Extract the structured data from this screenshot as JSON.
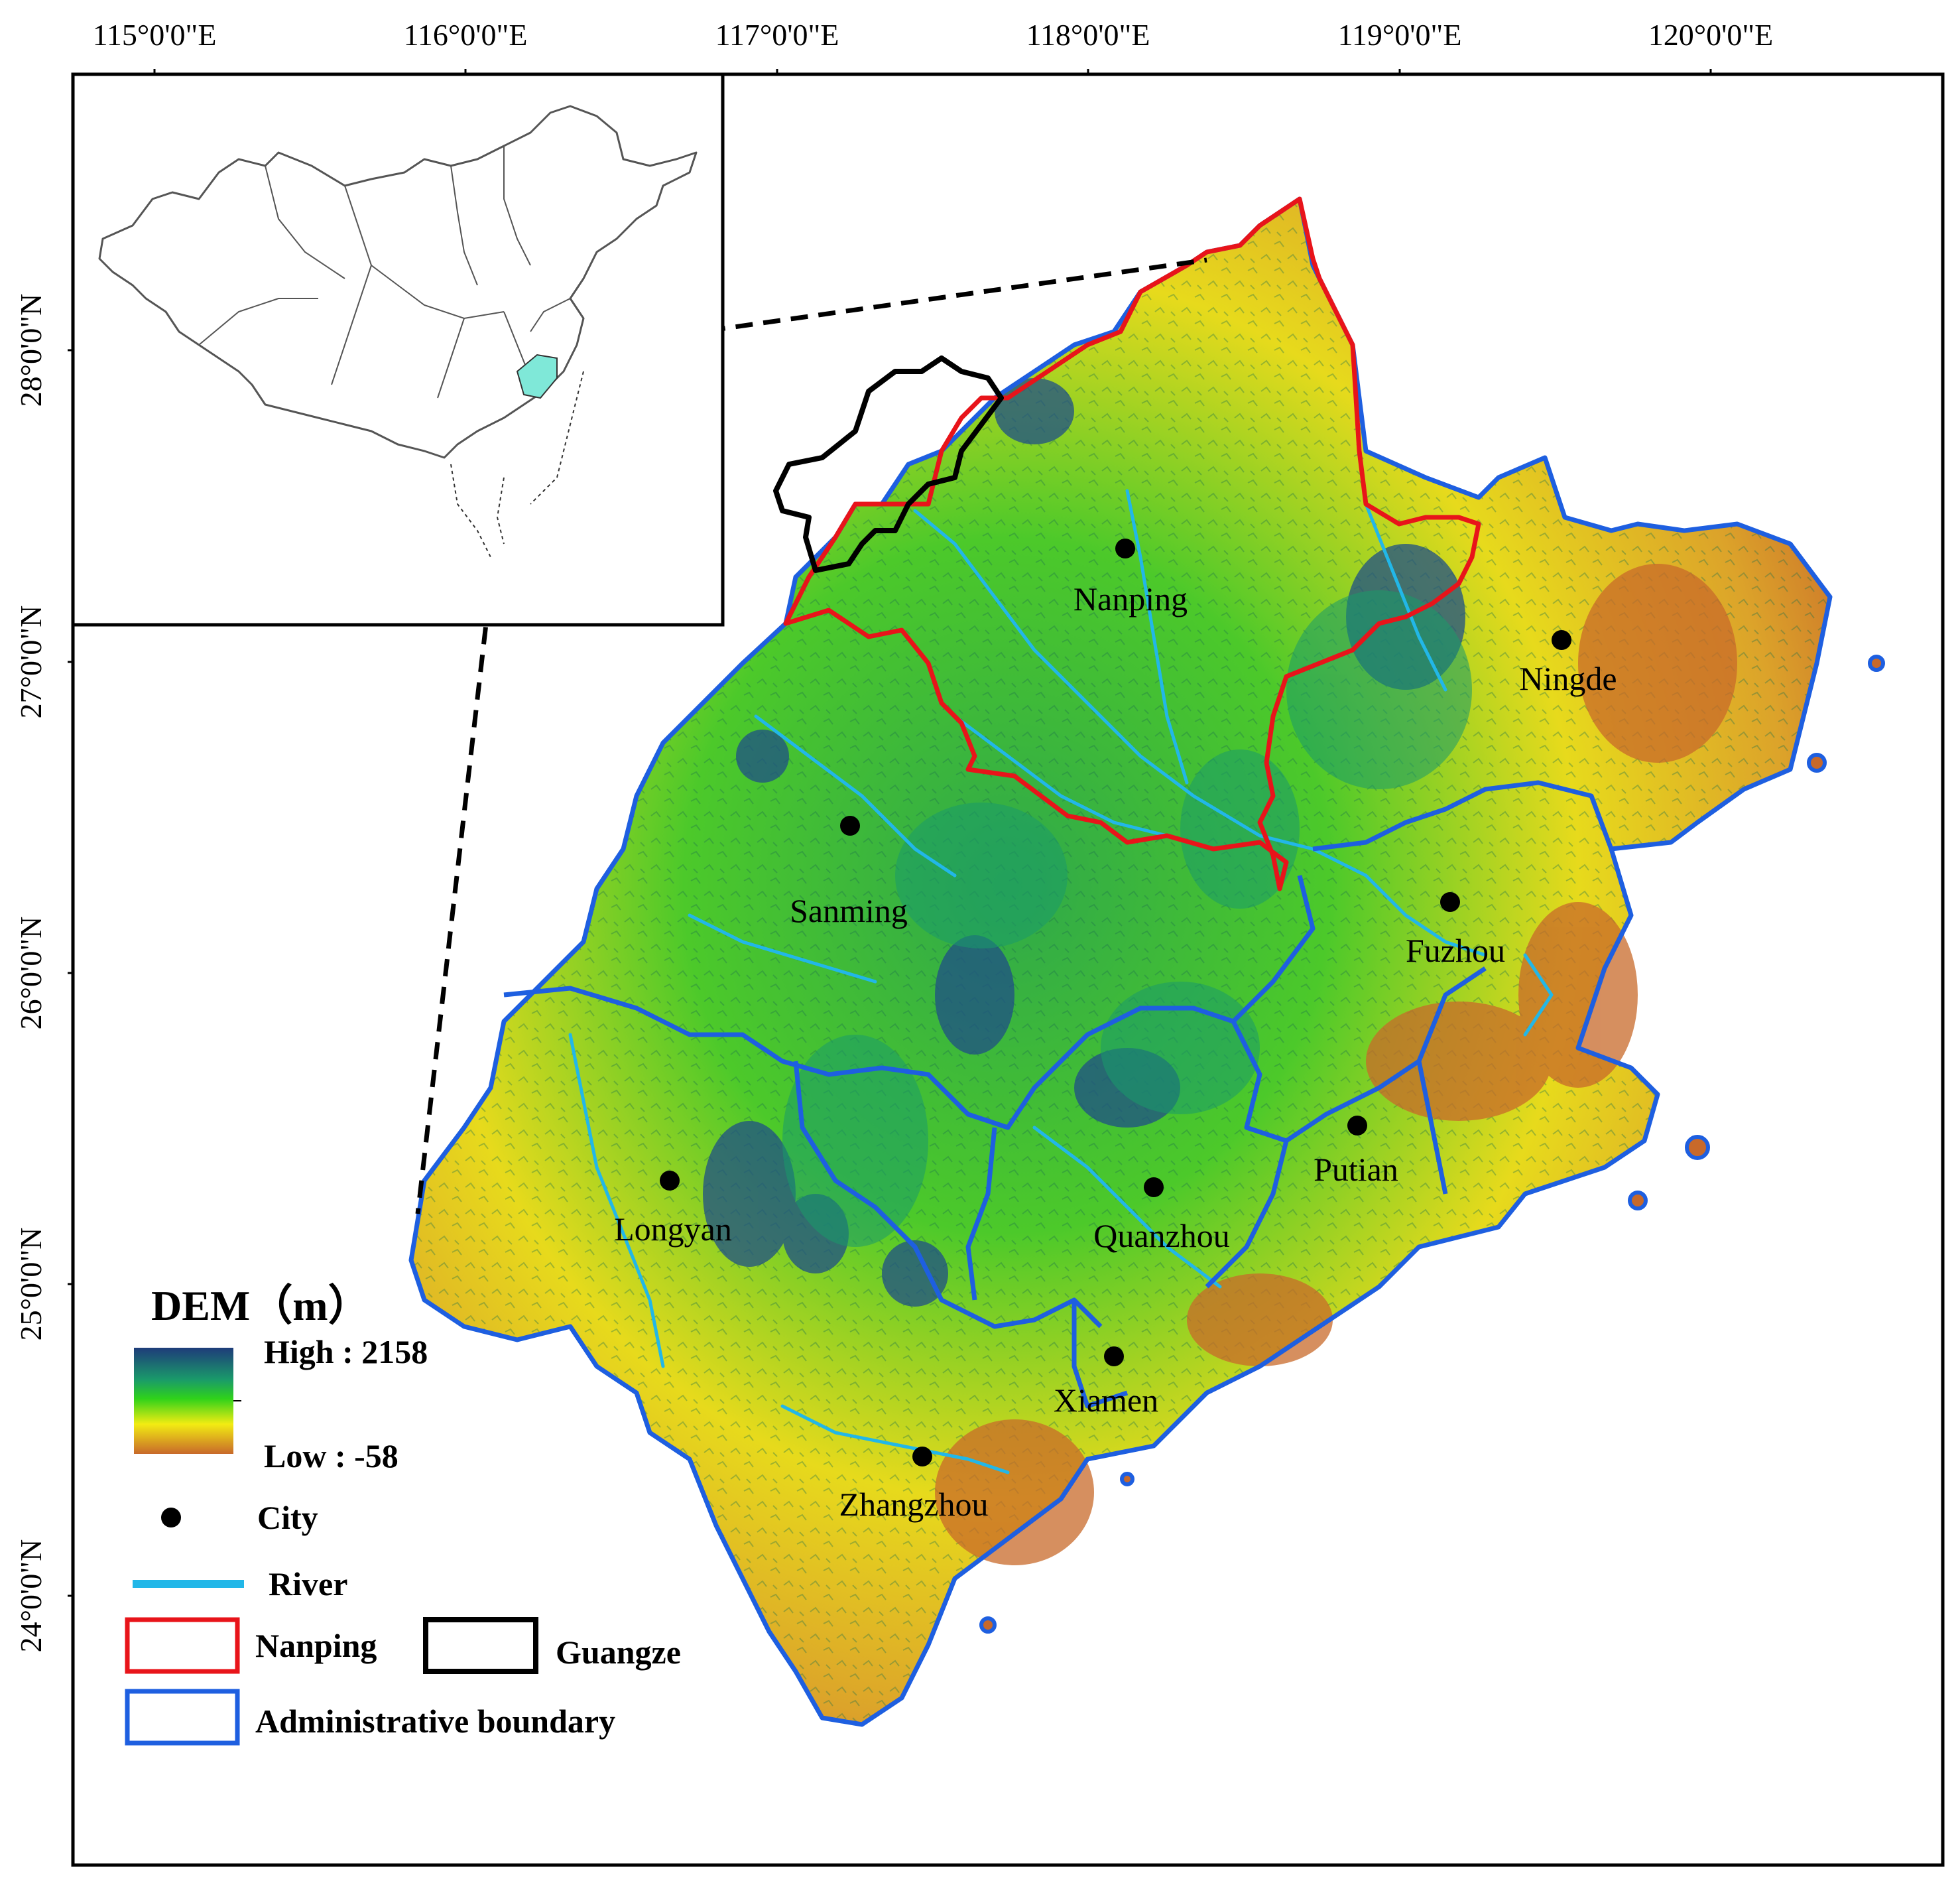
{
  "graticule": {
    "lon_labels": [
      "115°0'0\"E",
      "116°0'0\"E",
      "117°0'0\"E",
      "118°0'0\"E",
      "119°0'0\"E",
      "120°0'0\"E"
    ],
    "lat_labels": [
      "28°0'0\"N",
      "27°0'0\"N",
      "26°0'0\"N",
      "25°0'0\"N",
      "24°0'0\"N"
    ]
  },
  "cities": [
    {
      "name": "Nanping",
      "lon": 118.14,
      "lat": 27.34
    },
    {
      "name": "Ningde",
      "lon": 119.54,
      "lat": 26.66
    },
    {
      "name": "Sanming",
      "lon": 117.24,
      "lat": 26.26
    },
    {
      "name": "Fuzhou",
      "lon": 119.19,
      "lat": 26.07
    },
    {
      "name": "Putian",
      "lon": 118.89,
      "lat": 25.45
    },
    {
      "name": "Longyan",
      "lon": 116.68,
      "lat": 25.08
    },
    {
      "name": "Quanzhou",
      "lon": 118.23,
      "lat": 25.26
    },
    {
      "name": "Xiamen",
      "lon": 118.11,
      "lat": 24.6
    },
    {
      "name": "Zhangzhou",
      "lon": 117.49,
      "lat": 24.23
    }
  ],
  "legend": {
    "title": "DEM（m）",
    "high_label": "High : 2158",
    "low_label": "Low : -58",
    "city_label": "City",
    "river_label": "River",
    "nanping_label": "Nanping",
    "guangze_label": "Guangze",
    "admin_label": "Administrative boundary"
  },
  "colors": {
    "dem_high": "#1e3c7a",
    "dem_mid_high": "#1a9a6a",
    "dem_mid": "#2fd21a",
    "dem_mid_low": "#f2ec12",
    "dem_low": "#c8692a",
    "river": "#22b7e8",
    "nanping_boundary": "#e8141a",
    "guangze_boundary": "#000000",
    "admin_boundary": "#1e5fe0",
    "inset_highlight": "#7fe8d8"
  }
}
